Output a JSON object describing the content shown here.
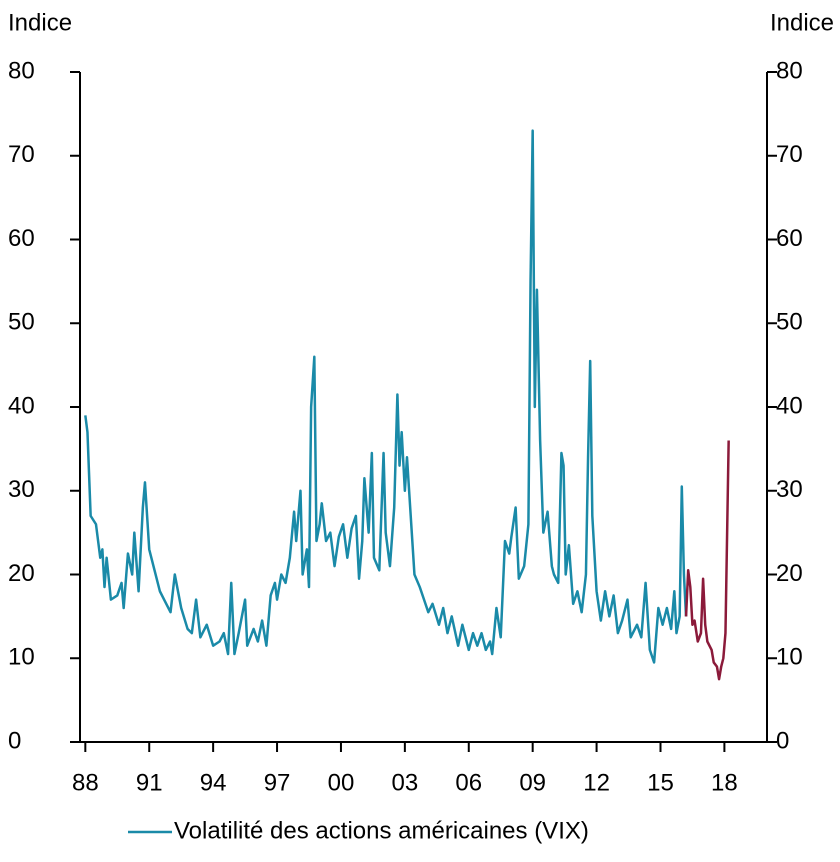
{
  "chart_data": {
    "type": "line",
    "y_label": "Indice",
    "y2_label": "Indice",
    "ylim": [
      0,
      80
    ],
    "yticks": [
      0,
      10,
      20,
      30,
      40,
      50,
      60,
      70,
      80
    ],
    "y2lim": [
      0,
      80
    ],
    "y2ticks": [
      0,
      10,
      20,
      30,
      40,
      50,
      60,
      70,
      80
    ],
    "xlim": [
      1987.75,
      2020
    ],
    "xticks": [
      {
        "value": 1988,
        "label": "88"
      },
      {
        "value": 1991,
        "label": "91"
      },
      {
        "value": 1994,
        "label": "94"
      },
      {
        "value": 1997,
        "label": "97"
      },
      {
        "value": 2000,
        "label": "00"
      },
      {
        "value": 2003,
        "label": "03"
      },
      {
        "value": 2006,
        "label": "06"
      },
      {
        "value": 2009,
        "label": "09"
      },
      {
        "value": 2012,
        "label": "12"
      },
      {
        "value": 2015,
        "label": "15"
      },
      {
        "value": 2018,
        "label": "18"
      }
    ],
    "legend": "bottom",
    "series": [
      {
        "name": "Volatilité des actions américaines (VIX)",
        "color": "#1a8aa8",
        "x": [
          1988.0,
          1988.1,
          1988.25,
          1988.5,
          1988.7,
          1988.8,
          1988.9,
          1989.0,
          1989.2,
          1989.5,
          1989.7,
          1989.8,
          1990.0,
          1990.2,
          1990.3,
          1990.5,
          1990.7,
          1990.8,
          1991.0,
          1991.2,
          1991.5,
          1991.7,
          1992.0,
          1992.2,
          1992.5,
          1992.8,
          1993.0,
          1993.2,
          1993.4,
          1993.7,
          1994.0,
          1994.3,
          1994.5,
          1994.7,
          1994.85,
          1995.0,
          1995.2,
          1995.5,
          1995.6,
          1995.9,
          1996.1,
          1996.3,
          1996.5,
          1996.7,
          1996.9,
          1997.0,
          1997.2,
          1997.4,
          1997.6,
          1997.8,
          1997.9,
          1998.1,
          1998.2,
          1998.4,
          1998.5,
          1998.6,
          1998.75,
          1998.85,
          1999.0,
          1999.1,
          1999.3,
          1999.5,
          1999.7,
          1999.9,
          2000.1,
          2000.3,
          2000.5,
          2000.7,
          2000.85,
          2001.0,
          2001.1,
          2001.3,
          2001.45,
          2001.55,
          2001.8,
          2002.0,
          2002.1,
          2002.3,
          2002.5,
          2002.65,
          2002.75,
          2002.85,
          2003.0,
          2003.1,
          2003.3,
          2003.45,
          2003.7,
          2003.9,
          2004.1,
          2004.3,
          2004.6,
          2004.8,
          2005.0,
          2005.2,
          2005.5,
          2005.7,
          2006.0,
          2006.2,
          2006.4,
          2006.6,
          2006.8,
          2007.0,
          2007.1,
          2007.3,
          2007.5,
          2007.7,
          2007.9,
          2008.0,
          2008.2,
          2008.35,
          2008.6,
          2008.8,
          2008.9,
          2009.0,
          2009.1,
          2009.2,
          2009.35,
          2009.5,
          2009.7,
          2009.9,
          2010.0,
          2010.2,
          2010.35,
          2010.45,
          2010.55,
          2010.7,
          2010.9,
          2011.1,
          2011.3,
          2011.5,
          2011.6,
          2011.7,
          2011.8,
          2012.0,
          2012.2,
          2012.4,
          2012.6,
          2012.8,
          2013.0,
          2013.2,
          2013.45,
          2013.6,
          2013.9,
          2014.1,
          2014.3,
          2014.5,
          2014.7,
          2014.9,
          2015.1,
          2015.3,
          2015.5,
          2015.65,
          2015.75,
          2015.9,
          2016.0,
          2016.1,
          2016.2
        ],
        "values": [
          39,
          37,
          27,
          26,
          22,
          23,
          18.5,
          22,
          17,
          17.5,
          19,
          16,
          22.5,
          20,
          25,
          18,
          28,
          31,
          23,
          21,
          18,
          17,
          15.5,
          20,
          16,
          13.5,
          13,
          17,
          12.5,
          14,
          11.5,
          12,
          13,
          10.5,
          19,
          10.5,
          13,
          17,
          11.5,
          13.5,
          12,
          14.5,
          11.5,
          17.5,
          19,
          17,
          20,
          19,
          22,
          27.5,
          24,
          30,
          20,
          23,
          18.5,
          40,
          46,
          24,
          26,
          28.5,
          24,
          25,
          21,
          24.5,
          26,
          22,
          25.5,
          27,
          19.5,
          24,
          31.5,
          25,
          34.5,
          22,
          20.5,
          34.5,
          25,
          21,
          28,
          41.5,
          33,
          37,
          30,
          34,
          26,
          20,
          18.5,
          17,
          15.5,
          16.5,
          14,
          16,
          13,
          15,
          11.5,
          14,
          11,
          13,
          11.5,
          13,
          11,
          12,
          10.5,
          16,
          12.5,
          24,
          22.5,
          24.5,
          28,
          19.5,
          21,
          26,
          55,
          73,
          40,
          54,
          36,
          25,
          27.5,
          21,
          20,
          19,
          34.5,
          33,
          20,
          23.5,
          16.5,
          18,
          15.5,
          20,
          34,
          45.5,
          27,
          18,
          14.5,
          18,
          15,
          17.5,
          13,
          14.5,
          17,
          12.5,
          14,
          12.5,
          19,
          11,
          9.5,
          16,
          14,
          16,
          13.5,
          18,
          13,
          15,
          30.5,
          20,
          15
        ]
      },
      {
        "color": "#8b1a3a",
        "x": [
          2016.2,
          2016.3,
          2016.4,
          2016.5,
          2016.6,
          2016.75,
          2016.9,
          2017.0,
          2017.1,
          2017.2,
          2017.4,
          2017.5,
          2017.65,
          2017.75,
          2017.85,
          2017.95,
          2018.05,
          2018.2
        ],
        "values": [
          15,
          20.5,
          18.5,
          14,
          14.5,
          12,
          13,
          19.5,
          14,
          12,
          11,
          9.5,
          9,
          7.5,
          9,
          10,
          13,
          36
        ]
      }
    ]
  }
}
